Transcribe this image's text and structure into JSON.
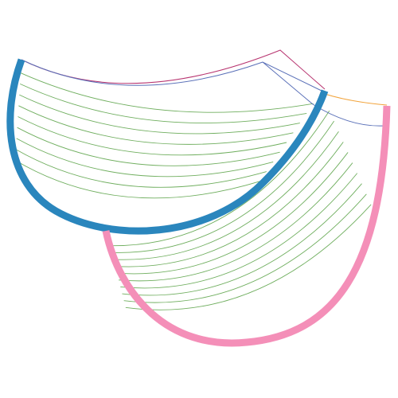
{
  "colors": {
    "background": "#ffffff",
    "upper_band_border": "#2a86bd",
    "lower_band_border": "#f48fb8",
    "fill_curves": "#6fae5e",
    "outer_top_edge": "#b7336f",
    "inner_top_edge": "#5a70b8",
    "small_edge_orange": "#f2a33a"
  },
  "icons": {
    "upper_band": "curved-ribbon-shape",
    "lower_band": "curved-ribbon-shape"
  }
}
